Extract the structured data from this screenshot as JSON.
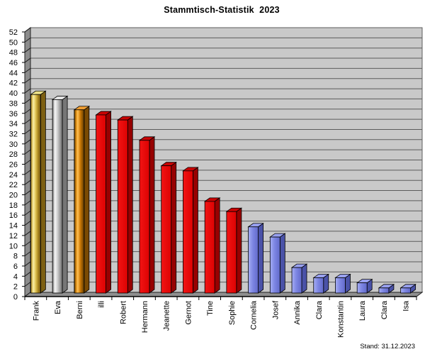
{
  "title": "Stammtisch-Statistik  2023",
  "footnote": "Stand: 31.12.2023",
  "chart_data": {
    "type": "bar",
    "projection": "3d",
    "title": "Stammtisch-Statistik 2023",
    "footnote": "Stand: 31.12.2023",
    "categories": [
      "Frank",
      "Eva",
      "Berni",
      "illi",
      "Robert",
      "Hermann",
      "Jeanette",
      "Gernot",
      "Tine",
      "Sophie",
      "Cornelia",
      "Josef",
      "Annika",
      "Clara",
      "Konstantin",
      "Laura",
      "Clara",
      "Isa"
    ],
    "values": [
      39,
      38,
      36,
      35,
      34,
      30,
      25,
      24,
      18,
      16,
      13,
      11,
      5,
      3,
      3,
      2,
      1,
      1
    ],
    "bar_styles": [
      "gold",
      "silver",
      "bronze",
      "red",
      "red",
      "red",
      "red",
      "red",
      "red",
      "red",
      "blue",
      "blue",
      "blue",
      "blue",
      "blue",
      "blue",
      "blue",
      "blue"
    ],
    "y_axis": {
      "min": 0,
      "max": 52,
      "step": 2
    },
    "xlabel": "",
    "ylabel": "",
    "grid": true,
    "legend": false,
    "palette": {
      "gold": {
        "gradient": [
          [
            "0",
            "#8a6a1a"
          ],
          [
            "0.13",
            "#d6b955"
          ],
          [
            "0.28",
            "#f9f0a8"
          ],
          [
            "0.5",
            "#e0c453"
          ],
          [
            "0.75",
            "#a8851f"
          ],
          [
            "1",
            "#6b500f"
          ]
        ],
        "top": "#ece087",
        "side": "#7d6012"
      },
      "silver": {
        "gradient": [
          [
            "0",
            "#6e6e6e"
          ],
          [
            "0.25",
            "#f8f8f8"
          ],
          [
            "0.5",
            "#cfcfcf"
          ],
          [
            "0.78",
            "#989898"
          ],
          [
            "1",
            "#6a6a6a"
          ]
        ],
        "top": "#e3e3e3",
        "side": "#767676"
      },
      "bronze": {
        "gradient": [
          [
            "0",
            "#4f3100"
          ],
          [
            "0.18",
            "#d8890f"
          ],
          [
            "0.35",
            "#ffc155"
          ],
          [
            "0.6",
            "#cf7b06"
          ],
          [
            "1",
            "#5c3900"
          ]
        ],
        "top": "#ef9e33",
        "side": "#7a4a02"
      },
      "red": {
        "gradient": [
          [
            "0",
            "#f21414"
          ],
          [
            "1",
            "#dc0202"
          ]
        ],
        "top": "#c90404",
        "side": "#970101"
      },
      "blue": {
        "gradient": [
          [
            "0",
            "#a6aef4"
          ],
          [
            "0.45",
            "#7d86e3"
          ],
          [
            "1",
            "#6169ca"
          ]
        ],
        "top": "#99a1f0",
        "side": "#4a52a8"
      }
    },
    "frame_colors": {
      "back_wall": "#c9c9c9",
      "side_wall": "#8c8c8c",
      "floor": "#8f8f8f",
      "gridline": "#5c5c5c",
      "edge": "#1f1f1f",
      "text": "#000000"
    }
  }
}
